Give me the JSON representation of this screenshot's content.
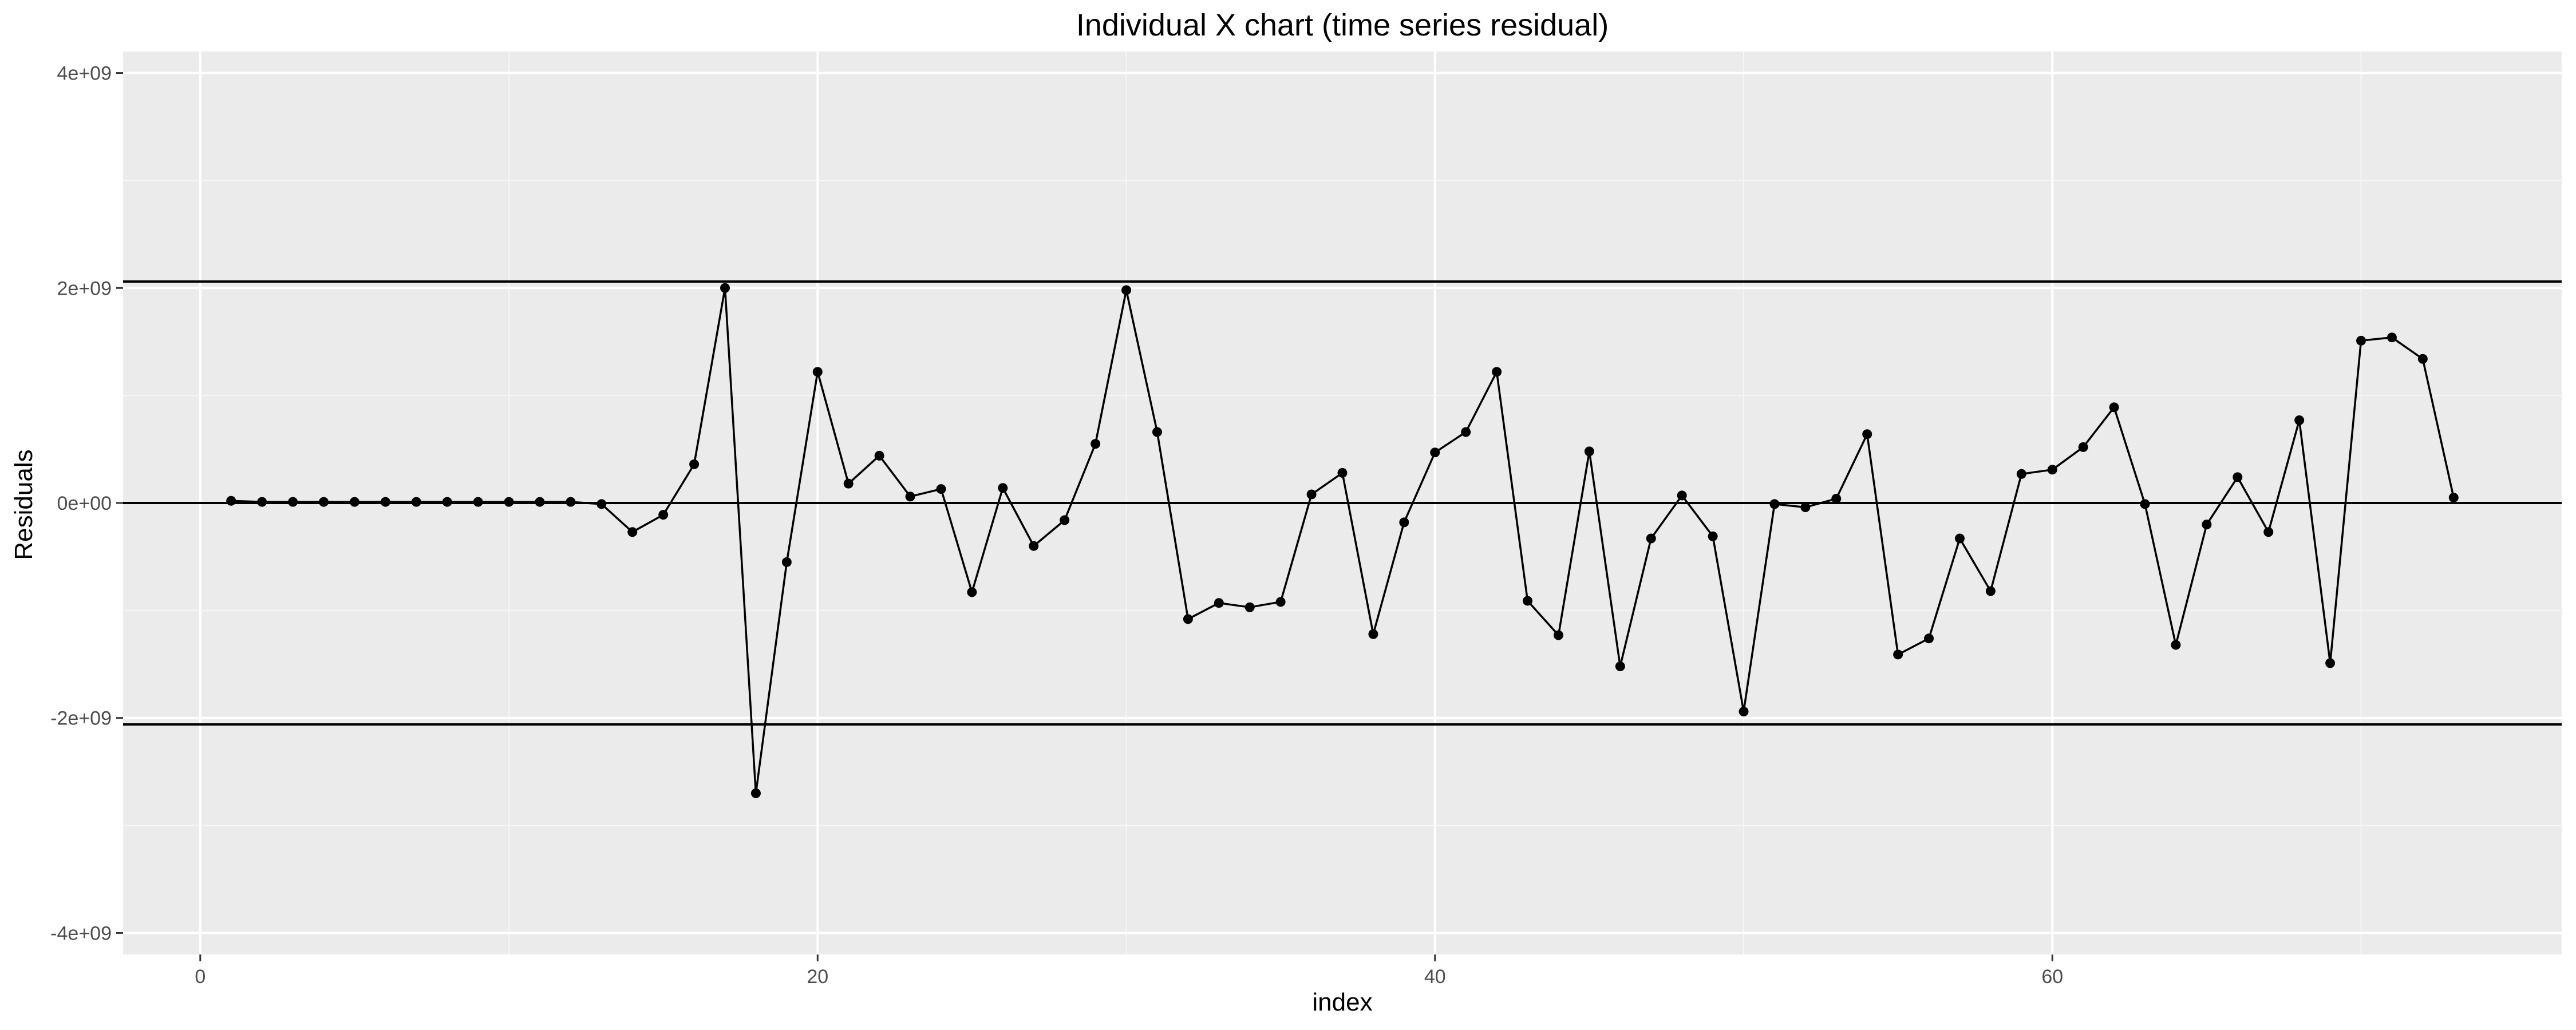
{
  "chart_data": {
    "type": "line",
    "title": "Individual X chart (time series residual)",
    "xlabel": "index",
    "ylabel": "Residuals",
    "xlim": [
      -2.5,
      76.5
    ],
    "ylim": [
      -4200000000.0,
      4200000000.0
    ],
    "x_ticks": [
      {
        "value": 0,
        "label": "0"
      },
      {
        "value": 20,
        "label": "20"
      },
      {
        "value": 40,
        "label": "40"
      },
      {
        "value": 60,
        "label": "60"
      }
    ],
    "y_ticks": [
      {
        "value": 4000000000.0,
        "label": "4e+09"
      },
      {
        "value": 2000000000.0,
        "label": "2e+09"
      },
      {
        "value": 0,
        "label": "0e+00"
      },
      {
        "value": -2000000000.0,
        "label": "-2e+09"
      },
      {
        "value": -4000000000.0,
        "label": "-4e+09"
      }
    ],
    "grid": true,
    "reference_lines": [
      2060000000.0,
      0,
      -2060000000.0
    ],
    "series": [
      {
        "marker": "point",
        "x": [
          1,
          2,
          3,
          4,
          5,
          6,
          7,
          8,
          9,
          10,
          11,
          12,
          13,
          14,
          15,
          16,
          17,
          18,
          19,
          20,
          21,
          22,
          23,
          24,
          25,
          26,
          27,
          28,
          29,
          30,
          31,
          32,
          33,
          34,
          35,
          36,
          37,
          38,
          39,
          40,
          41,
          42,
          43,
          44,
          45,
          46,
          47,
          48,
          49,
          50,
          51,
          52,
          53,
          54,
          55,
          56,
          57,
          58,
          59,
          60,
          61,
          62,
          63,
          64,
          65,
          66,
          67,
          68,
          69,
          70,
          71,
          72,
          73
        ],
        "y": [
          20000000.0,
          10000000.0,
          10000000.0,
          10000000.0,
          10000000.0,
          10000000.0,
          10000000.0,
          10000000.0,
          10000000.0,
          10000000.0,
          10000000.0,
          10000000.0,
          -10000000.0,
          -270000000.0,
          -110000000.0,
          360000000.0,
          2000000000.0,
          -2700000000.0,
          -550000000.0,
          1220000000.0,
          180000000.0,
          440000000.0,
          60000000.0,
          130000000.0,
          -830000000.0,
          140000000.0,
          -400000000.0,
          -160000000.0,
          550000000.0,
          1980000000.0,
          660000000.0,
          -1080000000.0,
          -930000000.0,
          -970000000.0,
          -920000000.0,
          80000000.0,
          280000000.0,
          -1220000000.0,
          -180000000.0,
          470000000.0,
          660000000.0,
          1220000000.0,
          -910000000.0,
          -1230000000.0,
          480000000.0,
          -1520000000.0,
          -330000000.0,
          70000000.0,
          -310000000.0,
          -1940000000.0,
          -10000000.0,
          -40000000.0,
          40000000.0,
          640000000.0,
          -1410000000.0,
          -1260000000.0,
          -330000000.0,
          -820000000.0,
          270000000.0,
          310000000.0,
          520000000.0,
          890000000.0,
          -10000000.0,
          -1320000000.0,
          -200000000.0,
          240000000.0,
          -270000000.0,
          770000000.0,
          -1490000000.0,
          1510000000.0,
          1540000000.0,
          1340000000.0,
          50000000.0
        ]
      }
    ]
  }
}
